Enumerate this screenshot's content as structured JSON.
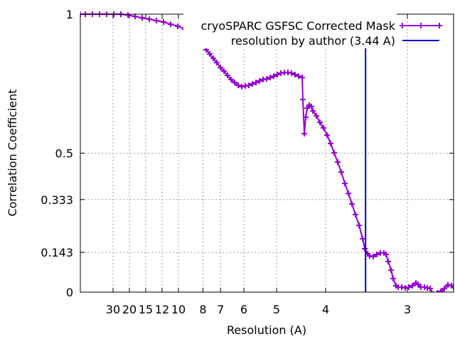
{
  "chart_data": {
    "type": "line",
    "title": "",
    "xlabel": "Resolution (A)",
    "ylabel": "Correlation Coefficient",
    "x_units": "1/A (spatial frequency)",
    "xlim": [
      0,
      0.3804
    ],
    "ylim": [
      0,
      1
    ],
    "grid": true,
    "legend_position": "top-right",
    "x_ticks": [
      {
        "label": "30",
        "res": 30
      },
      {
        "label": "20",
        "res": 20
      },
      {
        "label": "15",
        "res": 15
      },
      {
        "label": "12",
        "res": 12
      },
      {
        "label": "10",
        "res": 10
      },
      {
        "label": "8",
        "res": 8
      },
      {
        "label": "7",
        "res": 7
      },
      {
        "label": "6",
        "res": 6
      },
      {
        "label": "5",
        "res": 5
      },
      {
        "label": "4",
        "res": 4
      },
      {
        "label": "3",
        "res": 3
      }
    ],
    "y_ticks": [
      {
        "label": "0",
        "value": 0
      },
      {
        "label": "0.143",
        "value": 0.143
      },
      {
        "label": "0.333",
        "value": 0.333
      },
      {
        "label": "0.5",
        "value": 0.5
      },
      {
        "label": "1",
        "value": 1
      }
    ],
    "series": [
      {
        "name": "cryoSPARC GSFSC Corrected Mask",
        "color": "#9400d3",
        "x": [
          0,
          0.0051,
          0.0123,
          0.0196,
          0.0268,
          0.0341,
          0.0413,
          0.0486,
          0.0558,
          0.063,
          0.0703,
          0.0775,
          0.0848,
          0.092,
          0.0993,
          0.1065,
          0.1138,
          0.121,
          0.1246,
          0.1283,
          0.1319,
          0.1355,
          0.1391,
          0.1428,
          0.1464,
          0.15,
          0.1536,
          0.1572,
          0.1609,
          0.1645,
          0.1681,
          0.1717,
          0.1754,
          0.179,
          0.1826,
          0.1862,
          0.1899,
          0.1935,
          0.1971,
          0.2007,
          0.2043,
          0.208,
          0.2116,
          0.2152,
          0.2188,
          0.2225,
          0.2261,
          0.2268,
          0.2283,
          0.2297,
          0.2312,
          0.2333,
          0.2355,
          0.237,
          0.2406,
          0.2442,
          0.2478,
          0.2514,
          0.2551,
          0.2587,
          0.2623,
          0.2659,
          0.2696,
          0.2732,
          0.2768,
          0.2804,
          0.2841,
          0.2877,
          0.2899,
          0.2928,
          0.2949,
          0.2986,
          0.3022,
          0.3058,
          0.3094,
          0.3116,
          0.3138,
          0.3167,
          0.3188,
          0.3217,
          0.3239,
          0.3275,
          0.3312,
          0.3348,
          0.3384,
          0.342,
          0.3442,
          0.3471,
          0.3507,
          0.3536,
          0.3565,
          0.3601,
          0.3638,
          0.3674,
          0.371,
          0.3746,
          0.3783,
          0.3804
        ],
        "y": [
          1.0,
          1.0,
          1.0,
          1.0,
          1.0,
          1.0,
          1.0,
          0.997,
          0.992,
          0.987,
          0.982,
          0.977,
          0.972,
          0.964,
          0.957,
          0.946,
          0.934,
          0.91,
          0.893,
          0.872,
          0.857,
          0.841,
          0.826,
          0.808,
          0.795,
          0.78,
          0.765,
          0.754,
          0.744,
          0.739,
          0.742,
          0.744,
          0.749,
          0.754,
          0.76,
          0.765,
          0.767,
          0.772,
          0.777,
          0.783,
          0.788,
          0.79,
          0.79,
          0.788,
          0.783,
          0.777,
          0.772,
          0.693,
          0.57,
          0.629,
          0.662,
          0.673,
          0.668,
          0.652,
          0.634,
          0.611,
          0.591,
          0.565,
          0.535,
          0.501,
          0.468,
          0.432,
          0.391,
          0.355,
          0.317,
          0.279,
          0.24,
          0.192,
          0.156,
          0.138,
          0.13,
          0.128,
          0.136,
          0.141,
          0.141,
          0.136,
          0.11,
          0.079,
          0.049,
          0.023,
          0.018,
          0.018,
          0.015,
          0.018,
          0.023,
          0.033,
          0.028,
          0.018,
          0.018,
          0.015,
          0.013,
          -0.008,
          -0.003,
          0.003,
          0.013,
          0.026,
          0.023,
          0.018
        ]
      },
      {
        "name": "resolution by author (3.44 A)",
        "color": "#0000cd",
        "type": "vline",
        "res": 3.44
      }
    ]
  }
}
